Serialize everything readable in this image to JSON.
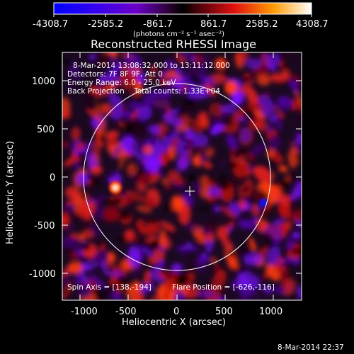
{
  "colorbar": {
    "ticks": [
      "-4308.7",
      "-2585.2",
      "-861.7",
      "861.7",
      "2585.2",
      "4308.7"
    ],
    "unit_label": "(photons cm⁻² s⁻¹ asec⁻²)"
  },
  "plot": {
    "title": "Reconstructed RHESSI Image",
    "info_lines": [
      "8-Mar-2014 13:08:32.000 to 13:11:12.000",
      "Detectors: 7F 8F 9F, Att 0",
      "Energy Range: 6.0 - 25.0 keV",
      "Back Projection    Total counts: 1.33E+04"
    ],
    "spin_axis": "Spin Axis = [138,-194]",
    "flare_position": "Flare Position = [-626,-116]",
    "x_axis_label": "Heliocentric X (arcsec)",
    "y_axis_label": "Heliocentric Y (arcsec)",
    "x_ticks": [
      "-1000",
      "-500",
      "0",
      "500",
      "1000"
    ],
    "y_ticks": [
      "1000",
      "500",
      "0",
      "-500",
      "-1000"
    ],
    "timestamp": "8-Mar-2014 22:37"
  },
  "colors": {
    "colormap": [
      "#0000ff",
      "#6a00c8",
      "#2a0030",
      "#000000",
      "#4a0008",
      "#e01010",
      "#ff9a00",
      "#ffffff"
    ]
  }
}
